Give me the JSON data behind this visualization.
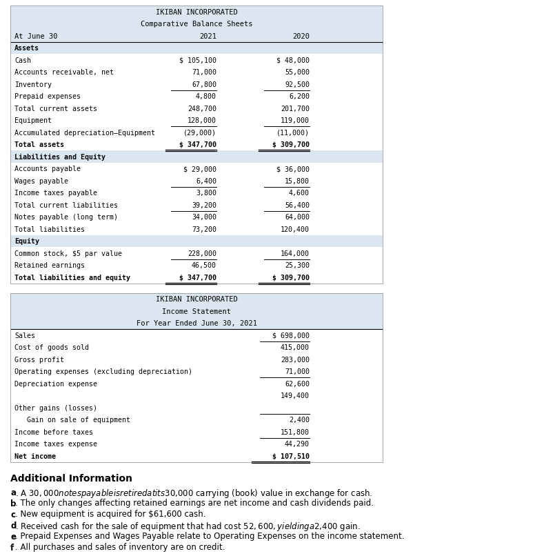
{
  "fig_width": 7.76,
  "fig_height": 8.06,
  "bg_color": "#ffffff",
  "table_bg": "#dce6f1",
  "text_color": "#000000",
  "bs_title1": "IKIBAN INCORPORATED",
  "bs_title2": "Comparative Balance Sheets",
  "bs_col_header": [
    "At June 30",
    "2021",
    "2020"
  ],
  "bs_rows": [
    {
      "label": "Assets",
      "val2021": "",
      "val2020": "",
      "style": "bold_section",
      "shade": true
    },
    {
      "label": "Cash",
      "val2021": "$ 105,100",
      "val2020": "$ 48,000",
      "style": "normal",
      "shade": false
    },
    {
      "label": "Accounts receivable, net",
      "val2021": "71,000",
      "val2020": "55,000",
      "style": "normal",
      "shade": false
    },
    {
      "label": "Inventory",
      "val2021": "67,800",
      "val2020": "92,500",
      "style": "normal",
      "shade": false
    },
    {
      "label": "Prepaid expenses",
      "val2021": "4,800",
      "val2020": "6,200",
      "style": "normal",
      "shade": false,
      "underline": true
    },
    {
      "label": "Total current assets",
      "val2021": "248,700",
      "val2020": "201,700",
      "style": "normal",
      "shade": false
    },
    {
      "label": "Equipment",
      "val2021": "128,000",
      "val2020": "119,000",
      "style": "normal",
      "shade": false
    },
    {
      "label": "Accumulated depreciation–Equipment",
      "val2021": "(29,000)",
      "val2020": "(11,000)",
      "style": "normal",
      "shade": false,
      "underline": true
    },
    {
      "label": "Total assets",
      "val2021": "$ 347,700",
      "val2020": "$ 309,700",
      "style": "bold",
      "shade": false,
      "double_underline": true
    },
    {
      "label": "Liabilities and Equity",
      "val2021": "",
      "val2020": "",
      "style": "bold_section",
      "shade": true
    },
    {
      "label": "Accounts payable",
      "val2021": "$ 29,000",
      "val2020": "$ 36,000",
      "style": "normal",
      "shade": false
    },
    {
      "label": "Wages payable",
      "val2021": "6,400",
      "val2020": "15,800",
      "style": "normal",
      "shade": false
    },
    {
      "label": "Income taxes payable",
      "val2021": "3,800",
      "val2020": "4,600",
      "style": "normal",
      "shade": false,
      "underline": true
    },
    {
      "label": "Total current liabilities",
      "val2021": "39,200",
      "val2020": "56,400",
      "style": "normal",
      "shade": false
    },
    {
      "label": "Notes payable (long term)",
      "val2021": "34,000",
      "val2020": "64,000",
      "style": "normal",
      "shade": false,
      "underline": true
    },
    {
      "label": "Total liabilities",
      "val2021": "73,200",
      "val2020": "120,400",
      "style": "normal",
      "shade": false
    },
    {
      "label": "Equity",
      "val2021": "",
      "val2020": "",
      "style": "bold_section",
      "shade": true
    },
    {
      "label": "Common stock, $5 par value",
      "val2021": "228,000",
      "val2020": "164,000",
      "style": "normal",
      "shade": false
    },
    {
      "label": "Retained earnings",
      "val2021": "46,500",
      "val2020": "25,300",
      "style": "normal",
      "shade": false,
      "underline": true
    },
    {
      "label": "Total liabilities and equity",
      "val2021": "$ 347,700",
      "val2020": "$ 309,700",
      "style": "bold",
      "shade": false,
      "double_underline": true
    }
  ],
  "is_title1": "IKIBAN INCORPORATED",
  "is_title2": "Income Statement",
  "is_title3": "For Year Ended June 30, 2021",
  "is_rows": [
    {
      "label": "Sales",
      "value": "$ 698,000",
      "style": "normal",
      "indent": 0,
      "underline": false
    },
    {
      "label": "Cost of goods sold",
      "value": "415,000",
      "style": "normal",
      "indent": 0,
      "underline": true
    },
    {
      "label": "Gross profit",
      "value": "283,000",
      "style": "normal",
      "indent": 0,
      "underline": false
    },
    {
      "label": "Operating expenses (excluding depreciation)",
      "value": "71,000",
      "style": "normal",
      "indent": 0,
      "underline": false
    },
    {
      "label": "Depreciation expense",
      "value": "62,600",
      "style": "normal",
      "indent": 0,
      "underline": true
    },
    {
      "label": "",
      "value": "149,400",
      "style": "normal",
      "indent": 0,
      "underline": false
    },
    {
      "label": "Other gains (losses)",
      "value": "",
      "style": "normal",
      "indent": 0,
      "underline": false
    },
    {
      "label": "   Gain on sale of equipment",
      "value": "2,400",
      "style": "normal",
      "indent": 0,
      "underline": true
    },
    {
      "label": "Income before taxes",
      "value": "151,800",
      "style": "normal",
      "indent": 0,
      "underline": false
    },
    {
      "label": "Income taxes expense",
      "value": "44,290",
      "style": "normal",
      "indent": 0,
      "underline": true
    },
    {
      "label": "Net income",
      "value": "$ 107,510",
      "style": "bold",
      "indent": 0,
      "double_underline": true
    }
  ],
  "additional_info_title": "Additional Information",
  "additional_info": [
    {
      "letter": "a",
      "text": ". A $30,000 notes payable is retired at its $30,000 carrying (book) value in exchange for cash."
    },
    {
      "letter": "b",
      "text": ". The only changes affecting retained earnings are net income and cash dividends paid."
    },
    {
      "letter": "c",
      "text": ". New equipment is acquired for $61,600 cash."
    },
    {
      "letter": "d",
      "text": ". Received cash for the sale of equipment that had cost $52,600, yielding a $2,400 gain."
    },
    {
      "letter": "e",
      "text": ". Prepaid Expenses and Wages Payable relate to Operating Expenses on the income statement."
    },
    {
      "letter": "f",
      "text": ". All purchases and sales of inventory are on credit."
    }
  ]
}
